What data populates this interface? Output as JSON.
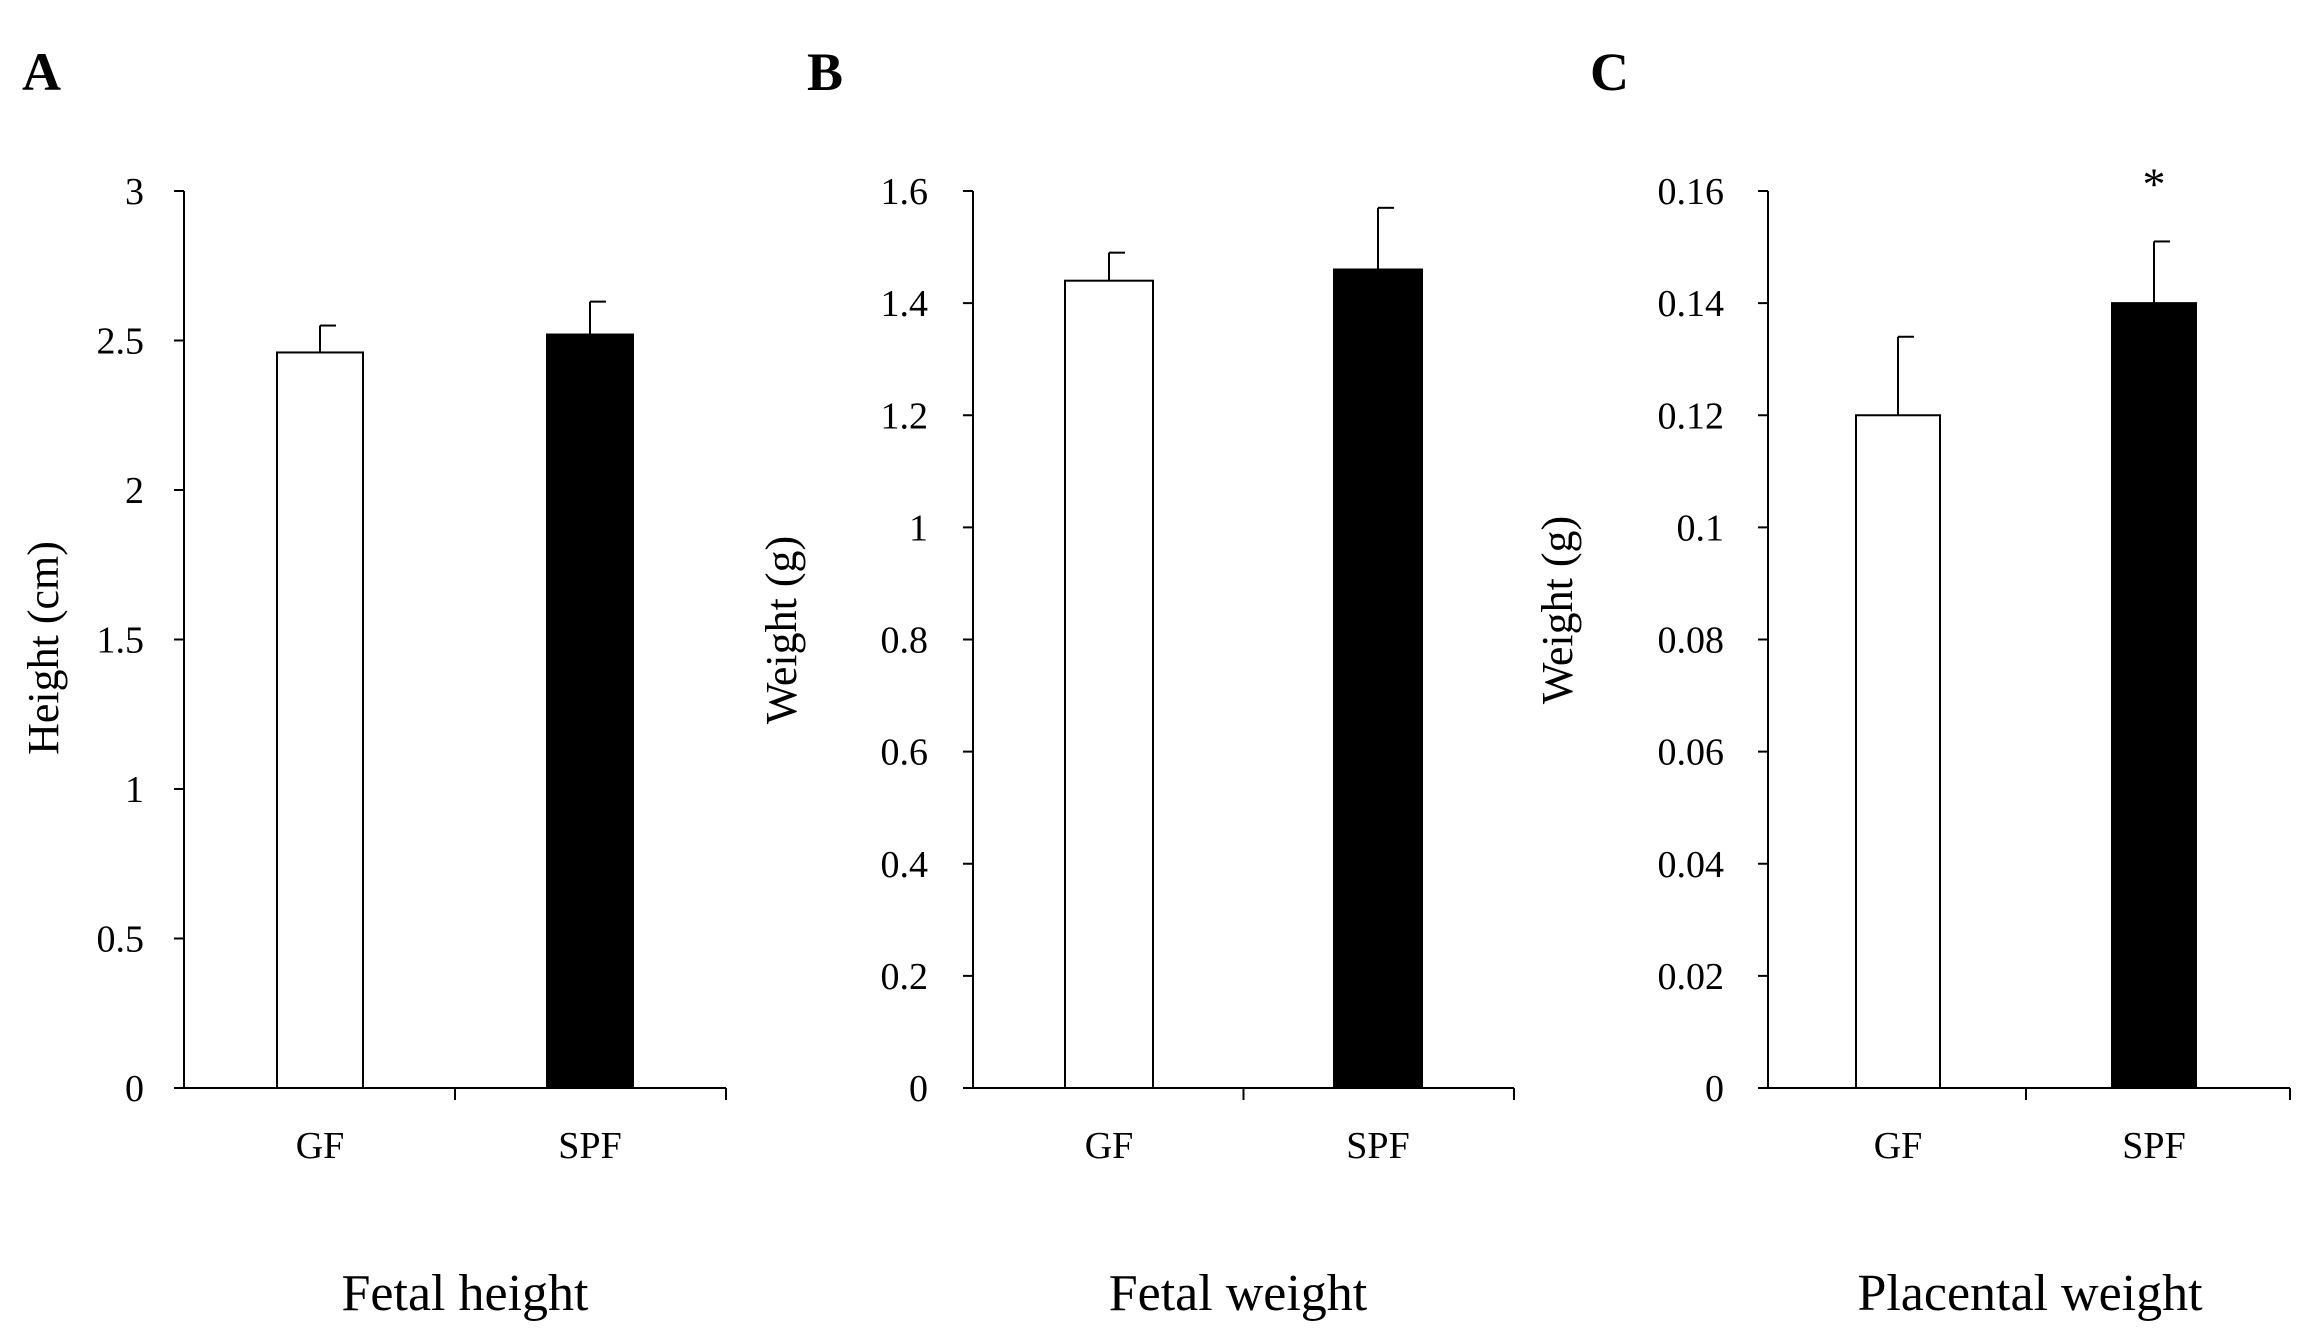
{
  "chart_data": [
    {
      "type": "bar",
      "panel": "A",
      "title": "Fetal height",
      "xlabel": "",
      "ylabel": "Height (cm)",
      "categories": [
        "GF",
        "SPF"
      ],
      "values": [
        2.46,
        2.52
      ],
      "errors": [
        0.09,
        0.11
      ],
      "significance": [
        "",
        ""
      ],
      "bar_colors": [
        "#ffffff",
        "#000000"
      ],
      "ylim": [
        0,
        3
      ],
      "yticks": [
        0,
        0.5,
        1,
        1.5,
        2,
        2.5,
        3
      ],
      "ytick_labels": [
        "0",
        "0.5",
        "1",
        "1.5",
        "2",
        "2.5",
        "3"
      ],
      "grid": false
    },
    {
      "type": "bar",
      "panel": "B",
      "title": "Fetal weight",
      "xlabel": "",
      "ylabel": "Weight (g)",
      "categories": [
        "GF",
        "SPF"
      ],
      "values": [
        1.44,
        1.46
      ],
      "errors": [
        0.05,
        0.11
      ],
      "significance": [
        "",
        ""
      ],
      "bar_colors": [
        "#ffffff",
        "#000000"
      ],
      "ylim": [
        0,
        1.6
      ],
      "yticks": [
        0,
        0.2,
        0.4,
        0.6,
        0.8,
        1,
        1.2,
        1.4,
        1.6
      ],
      "ytick_labels": [
        "0",
        "0.2",
        "0.4",
        "0.6",
        "0.8",
        "1",
        "1.2",
        "1.4",
        "1.6"
      ],
      "grid": false
    },
    {
      "type": "bar",
      "panel": "C",
      "title": "Placental weight",
      "xlabel": "",
      "ylabel": "Weight (g)",
      "categories": [
        "GF",
        "SPF"
      ],
      "values": [
        0.12,
        0.14
      ],
      "errors": [
        0.014,
        0.011
      ],
      "significance": [
        "",
        "*"
      ],
      "bar_colors": [
        "#ffffff",
        "#000000"
      ],
      "ylim": [
        0,
        0.16
      ],
      "yticks": [
        0,
        0.02,
        0.04,
        0.06,
        0.08,
        0.1,
        0.12,
        0.14,
        0.16
      ],
      "ytick_labels": [
        "0",
        "0.02",
        "0.04",
        "0.06",
        "0.08",
        "0.1",
        "0.12",
        "0.14",
        "0.16"
      ],
      "grid": false
    }
  ]
}
